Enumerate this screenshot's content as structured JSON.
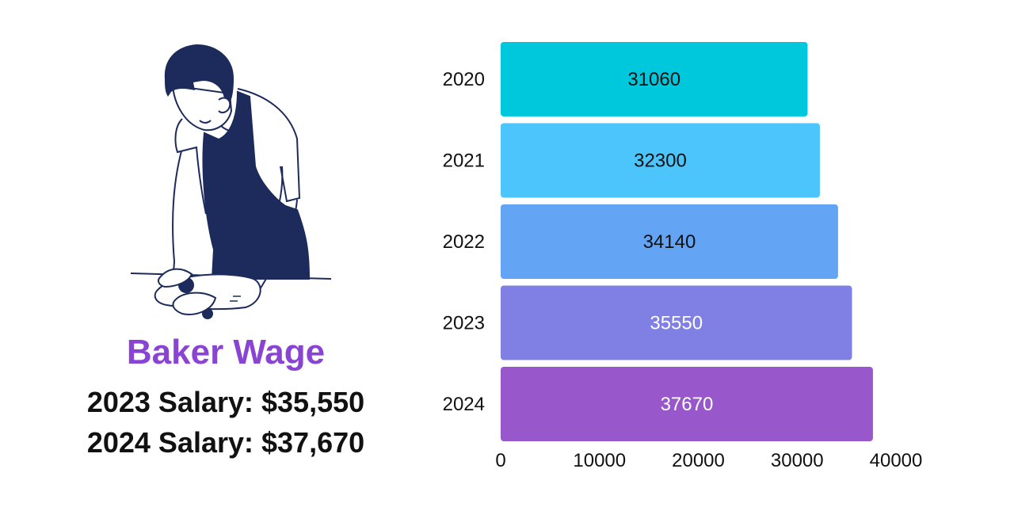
{
  "infographic": {
    "title": "Baker Wage",
    "salary_2023": "2023 Salary: $35,550",
    "salary_2024": "2024 Salary: $37,670"
  },
  "chart_data": {
    "type": "bar",
    "orientation": "horizontal",
    "categories": [
      "2020",
      "2021",
      "2022",
      "2023",
      "2024"
    ],
    "values": [
      31060,
      32300,
      34140,
      35550,
      37670
    ],
    "data_labels": [
      "31060",
      "32300",
      "34140",
      "35550",
      "37670"
    ],
    "colors": [
      "#00c8dc",
      "#4cc4fc",
      "#64a4f4",
      "#8080e4",
      "#9858cc"
    ],
    "label_colors": [
      "#111111",
      "#111111",
      "#111111",
      "#ffffff",
      "#ffffff"
    ],
    "x_ticks": [
      0,
      10000,
      20000,
      30000,
      40000
    ],
    "xlim": [
      0,
      40000
    ],
    "title": "",
    "xlabel": "",
    "ylabel": "",
    "grid": false,
    "legend": "none"
  }
}
